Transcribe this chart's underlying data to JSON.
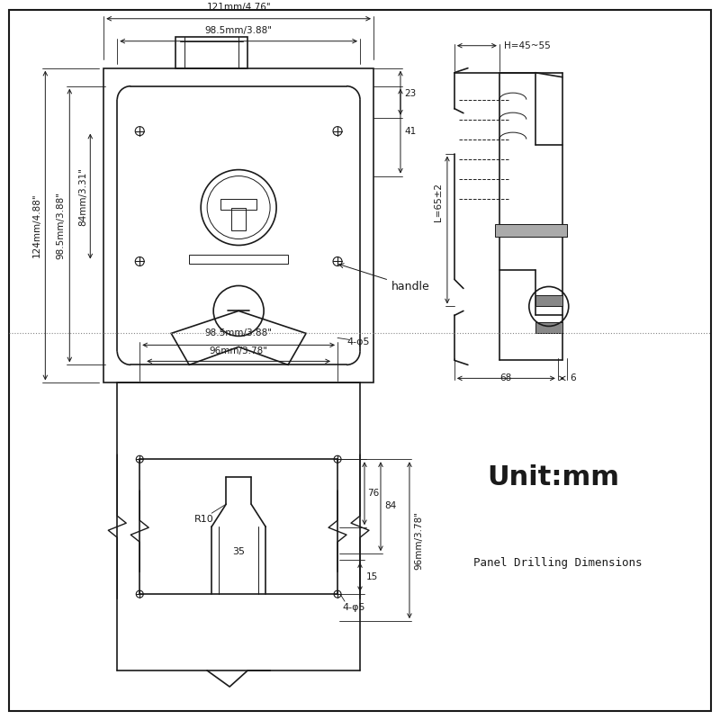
{
  "bg_color": "#ffffff",
  "line_color": "#1a1a1a",
  "fig_width": 8.0,
  "fig_height": 8.0,
  "annotations": {
    "top_dim1": "121mm/4.76\"",
    "top_dim2": "98.5mm/3.88\"",
    "left_dim1": "124mm/4.88\"",
    "left_dim2": "98.5mm/3.88\"",
    "left_dim3": "84mm/3.31\"",
    "right_dim1": "23",
    "right_dim2": "41",
    "handle_label": "handle",
    "hole_label": "4-φ5",
    "side_H": "H=45~55",
    "side_L": "L=65±2",
    "side_68": "68",
    "side_6": "6",
    "bottom_dim1": "98.5mm/3.88\"",
    "bottom_dim2": "96mm/3.78\"",
    "bottom_35": "35",
    "bottom_76": "76",
    "bottom_84": "84",
    "bottom_15": "15",
    "bottom_r10": "R10",
    "bottom_hole": "4-φ5",
    "bottom_96": "96mm/3.78\"",
    "title": "Unit:mm",
    "subtitle": "Panel Drilling Dimensions"
  }
}
